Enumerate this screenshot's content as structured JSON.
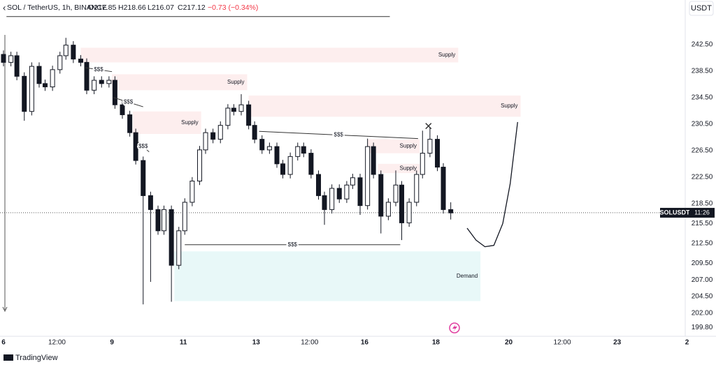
{
  "header": {
    "symbol": "SOL / TetherUS, 1h, BINANCE",
    "open": "O217.85",
    "high": "H218.66",
    "low": "L216.07",
    "close": "C217.12",
    "change": "−0.73 (−0.34%)"
  },
  "currency": "USDT",
  "brand": "TradingView",
  "chart_data": {
    "type": "candlestick",
    "x": [
      0,
      5,
      9,
      14,
      19,
      24,
      28,
      33,
      38,
      42,
      47,
      52,
      56,
      61,
      66,
      71,
      75,
      80,
      85,
      89,
      94,
      99,
      104,
      108,
      113,
      118,
      122,
      127,
      132,
      136,
      141,
      146,
      151,
      155,
      160,
      165,
      169,
      174,
      179,
      184,
      188,
      193,
      198,
      202,
      207,
      212,
      216,
      221,
      226,
      231,
      235,
      240,
      245,
      249,
      254,
      259,
      264,
      268,
      273,
      278,
      282,
      287,
      292,
      296,
      301
    ],
    "open": [
      241.0,
      239.8,
      240.8,
      237.7,
      232.4,
      239.2,
      236.6,
      236.1,
      238.7,
      240.8,
      242.4,
      240.3,
      239.8,
      235.6,
      237.1,
      236.6,
      237.1,
      233.4,
      231.9,
      229.2,
      225.0,
      219.7,
      217.6,
      214.4,
      217.6,
      209.2,
      214.4,
      218.7,
      221.9,
      226.6,
      229.2,
      228.2,
      230.3,
      232.9,
      232.4,
      233.4,
      230.3,
      228.2,
      226.6,
      227.1,
      224.5,
      222.9,
      225.6,
      227.1,
      226.1,
      222.9,
      219.7,
      217.6,
      220.8,
      219.2,
      221.3,
      222.4,
      218.2,
      227.1,
      222.9,
      216.6,
      218.7,
      221.3,
      215.6,
      218.7,
      222.9,
      226.1,
      228.2,
      224.0,
      217.6
    ],
    "high": [
      241.6,
      241.4,
      241.4,
      238.3,
      239.8,
      239.8,
      237.2,
      239.3,
      241.4,
      243.5,
      243.0,
      240.9,
      240.4,
      237.7,
      237.7,
      237.7,
      237.7,
      234.0,
      232.5,
      229.8,
      225.6,
      220.3,
      218.2,
      218.2,
      218.2,
      215.0,
      219.3,
      222.5,
      227.2,
      229.8,
      229.8,
      230.9,
      233.5,
      233.5,
      235.0,
      234.0,
      230.9,
      228.8,
      227.7,
      227.7,
      225.1,
      226.2,
      227.7,
      227.7,
      226.7,
      223.5,
      220.3,
      221.4,
      221.4,
      221.9,
      223.0,
      223.0,
      228.3,
      227.7,
      223.5,
      219.3,
      223.5,
      221.9,
      219.3,
      223.5,
      229.5,
      230.0,
      228.8,
      224.6,
      218.7
    ],
    "low": [
      239.2,
      239.2,
      237.1,
      231.0,
      231.8,
      236.0,
      235.5,
      235.5,
      238.1,
      240.2,
      239.7,
      239.2,
      235.0,
      235.0,
      236.0,
      236.0,
      232.8,
      231.3,
      228.6,
      224.4,
      203.3,
      206.7,
      213.8,
      213.8,
      203.7,
      208.6,
      213.8,
      218.1,
      221.3,
      226.0,
      227.6,
      227.6,
      229.7,
      231.8,
      231.8,
      229.7,
      227.6,
      226.0,
      226.0,
      223.9,
      222.3,
      222.3,
      225.0,
      225.5,
      222.3,
      219.1,
      215.3,
      217.0,
      218.6,
      218.6,
      220.7,
      216.8,
      217.6,
      222.3,
      214.0,
      216.0,
      218.1,
      213.0,
      215.0,
      218.1,
      222.3,
      225.5,
      223.4,
      217.0,
      216.1
    ],
    "close": [
      239.8,
      240.8,
      237.7,
      232.4,
      239.2,
      236.6,
      236.1,
      238.7,
      240.8,
      242.4,
      240.3,
      239.8,
      235.6,
      237.1,
      236.6,
      237.1,
      233.4,
      231.9,
      229.2,
      225.0,
      219.7,
      217.6,
      214.4,
      217.6,
      209.2,
      214.4,
      218.7,
      221.9,
      226.6,
      229.2,
      228.2,
      230.3,
      232.9,
      232.4,
      233.4,
      230.3,
      228.2,
      226.6,
      227.1,
      224.5,
      222.9,
      225.6,
      227.1,
      226.1,
      222.9,
      219.7,
      217.6,
      220.8,
      219.2,
      221.3,
      222.4,
      218.2,
      227.1,
      222.9,
      216.6,
      218.7,
      221.3,
      215.6,
      218.7,
      222.9,
      226.1,
      228.2,
      224.0,
      217.6,
      217.1
    ],
    "up_color": "#ffffff",
    "down_color": "#131722",
    "xlim": [
      -2.35,
      458.8
    ],
    "ylim": [
      198.7,
      247.1
    ],
    "xticks": [
      {
        "value": 0,
        "label": "6"
      },
      {
        "value": 36,
        "label": "12:00"
      },
      {
        "value": 73,
        "label": "9"
      },
      {
        "value": 121,
        "label": "11"
      },
      {
        "value": 170,
        "label": "13"
      },
      {
        "value": 206,
        "label": "12:00"
      },
      {
        "value": 243,
        "label": "16"
      },
      {
        "value": 291,
        "label": "18"
      },
      {
        "value": 340,
        "label": "20"
      },
      {
        "value": 376,
        "label": "12:00"
      },
      {
        "value": 413,
        "label": "23"
      },
      {
        "value": 460,
        "label": "2"
      }
    ],
    "yticks": [
      {
        "value": 242.5,
        "label": "242.50"
      },
      {
        "value": 238.5,
        "label": "238.50"
      },
      {
        "value": 234.5,
        "label": "234.50"
      },
      {
        "value": 230.5,
        "label": "230.50"
      },
      {
        "value": 226.5,
        "label": "226.50"
      },
      {
        "value": 222.5,
        "label": "222.50"
      },
      {
        "value": 218.5,
        "label": "218.50"
      },
      {
        "value": 215.5,
        "label": "215.50"
      },
      {
        "value": 212.5,
        "label": "212.50"
      },
      {
        "value": 209.5,
        "label": "209.50"
      },
      {
        "value": 207,
        "label": "207.00"
      },
      {
        "value": 204.5,
        "label": "204.50"
      },
      {
        "value": 202,
        "label": "202.00"
      },
      {
        "value": 199.8,
        "label": "199.80"
      }
    ],
    "last_price": 217.12,
    "price_tag": {
      "symbol": "SOLUSDT",
      "countdown": "11:26"
    },
    "zones": [
      {
        "label": "Supply",
        "x": [
          52,
          306
        ],
        "y": [
          239.8,
          242.0
        ],
        "color": "#fdeeee"
      },
      {
        "label": "Supply",
        "x": [
          73,
          164
        ],
        "y": [
          235.6,
          238.0
        ],
        "color": "#fdeeee"
      },
      {
        "label": "Supply",
        "x": [
          87,
          133
        ],
        "y": [
          229.0,
          232.4
        ],
        "color": "#fdeeee"
      },
      {
        "label": "Supply",
        "x": [
          165,
          348
        ],
        "y": [
          231.6,
          234.8
        ],
        "color": "#fdeeee"
      },
      {
        "label": "Supply",
        "x": [
          245,
          280
        ],
        "y": [
          226.1,
          228.2
        ],
        "color": "#fdeeee"
      },
      {
        "label": "Supply",
        "x": [
          252,
          280
        ],
        "y": [
          223.1,
          224.5
        ],
        "color": "#fdeeee"
      },
      {
        "label": "Demand",
        "x": [
          115,
          321
        ],
        "y": [
          203.8,
          211.3
        ],
        "color": "#e8f8f8"
      }
    ],
    "liquidity_lines": [
      {
        "label": "$$$",
        "x": [
          55,
          73
        ],
        "y": [
          239.0,
          238.4
        ]
      },
      {
        "label": "$$$",
        "x": [
          74,
          94
        ],
        "y": [
          234.5,
          233.1
        ]
      },
      {
        "label": "$$$",
        "x": [
          90,
          98
        ],
        "y": [
          227.9,
          226.3
        ]
      },
      {
        "label": "$$$",
        "x": [
          172,
          279
        ],
        "y": [
          229.4,
          228.3
        ]
      },
      {
        "label": "$$$",
        "x": [
          122,
          267
        ],
        "y": [
          212.3,
          212.3
        ]
      }
    ],
    "top_line": {
      "x": [
        2,
        260
      ],
      "y": [
        246.7,
        246.7
      ]
    },
    "projection": {
      "x": [
        312,
        318,
        324,
        330,
        336,
        341,
        346
      ],
      "y": [
        214.8,
        213.0,
        212.0,
        212.2,
        215.5,
        221.5,
        230.8
      ]
    },
    "marker": {
      "x": 286,
      "y": 230.2
    }
  }
}
